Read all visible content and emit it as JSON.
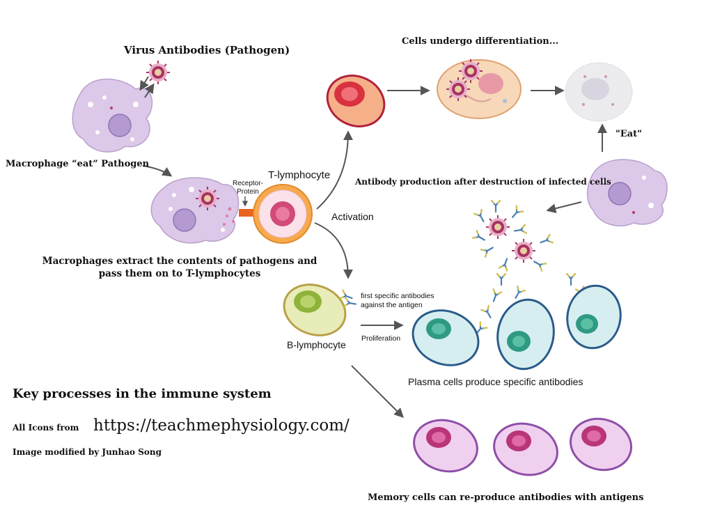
{
  "labels": {
    "virus_title": "Virus Antibodies (Pathogen)",
    "macrophage_eat": "Macrophage “eat” Pathogen",
    "receptor_protein": "Receptor-\nProtein",
    "t_lymphocyte": "T-lymphocyte",
    "activation": "Activation",
    "macrophages_extract": "Macrophages extract the contents of pathogens and\npass them on to T-lymphocytes",
    "differentiation": "Cells undergo differentiation...",
    "eat": "\"Eat\"",
    "antibody_production": "Antibody production after destruction of infected cells",
    "first_antibodies": "first specific antibodies\nagainst the antigen",
    "b_lymphocyte": "B-lymphocyte",
    "proliferation": "Proliferation",
    "plasma_cells": "Plasma cells produce specific antibodies",
    "memory_cells": "Memory cells can re-produce antibodies with antigens"
  },
  "footer": {
    "title": "Key processes in the immune system",
    "icons_prefix": "All Icons from",
    "icons_url": "https://teachmephysiology.com/",
    "credit": "Image modified by Junhao Song"
  },
  "colors": {
    "macrophage": "#dcc8e8",
    "t_cell": "#f2a24a",
    "b_cell": "#b9c77a",
    "plasma": "#bfe2e6",
    "memory": "#c98fcf",
    "virus": "#b23a6a",
    "arrow": "#555555"
  }
}
